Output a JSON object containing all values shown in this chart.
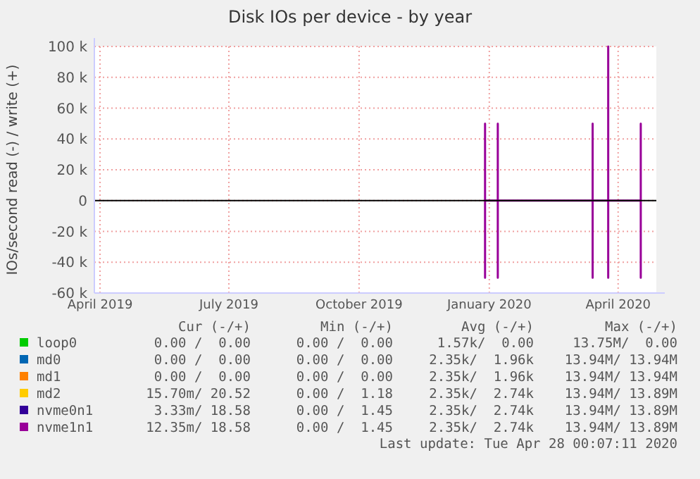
{
  "chart_data": {
    "type": "line",
    "title": "Disk IOs per device - by year",
    "ylabel": "IOs/second read (-) / write (+)",
    "xlim": [
      "2019-03-28",
      "2020-04-28"
    ],
    "xticks": [
      {
        "value": "2019-04-01",
        "label": "April 2019"
      },
      {
        "value": "2019-07-01",
        "label": "July 2019"
      },
      {
        "value": "2019-10-01",
        "label": "October 2019"
      },
      {
        "value": "2020-01-01",
        "label": "January 2020"
      },
      {
        "value": "2020-04-01",
        "label": "April 2020"
      }
    ],
    "ylim": [
      -60000,
      100000
    ],
    "yticks": [
      {
        "value": -60000,
        "label": "-60 k"
      },
      {
        "value": -40000,
        "label": "-40 k"
      },
      {
        "value": -20000,
        "label": "-20 k"
      },
      0,
      {
        "value": 20000,
        "label": "20 k"
      },
      {
        "value": 40000,
        "label": "40 k"
      },
      {
        "value": 60000,
        "label": "60 k"
      },
      {
        "value": 80000,
        "label": "80 k"
      },
      {
        "value": 100000,
        "label": "100 k"
      }
    ],
    "grid": true,
    "legend": "bottom",
    "ref_lines": [
      {
        "axis": "y",
        "value": 0,
        "color": "#000000"
      }
    ],
    "series": [
      {
        "name": "loop0",
        "color": "#00cc00"
      },
      {
        "name": "md0",
        "color": "#0066b3"
      },
      {
        "name": "md1",
        "color": "#ff8000"
      },
      {
        "name": "md2",
        "color": "#ffcc00"
      },
      {
        "name": "nvme0n1",
        "color": "#330099"
      },
      {
        "name": "nvme1n1",
        "color": "#990099",
        "x": [
          "2019-12-29",
          "2019-12-29",
          "2019-12-29",
          "2019-12-29",
          "2020-01-07",
          "2020-01-07",
          "2020-01-07",
          "2020-01-07",
          "2020-03-14",
          "2020-03-14",
          "2020-03-14",
          "2020-03-14",
          "2020-03-25",
          "2020-03-25",
          "2020-03-25",
          "2020-03-25",
          "2020-04-17",
          "2020-04-17",
          "2020-04-17",
          "2020-04-17"
        ],
        "values": [
          0,
          50000,
          -50000,
          0,
          0,
          50000,
          -50000,
          0,
          0,
          50000,
          -50000,
          0,
          0,
          100000,
          -50000,
          0,
          0,
          50000,
          -50000,
          0
        ]
      }
    ],
    "annotations": [
      "Cur (-/+)",
      "Min (-/+)",
      "Avg (-/+)",
      "Max (-/+)",
      "0.00 /  0.00",
      "0.00 /  0.00",
      "1.57k/  0.00",
      "13.75M/  0.00",
      "0.00 /  0.00",
      "0.00 /  0.00",
      "2.35k/  1.96k",
      "13.94M/ 13.94M",
      "0.00 /  0.00",
      "0.00 /  0.00",
      "2.35k/  1.96k",
      "13.94M/ 13.94M",
      "15.70m/ 20.52",
      "0.00 /  1.18",
      "2.35k/  2.74k",
      "13.94M/ 13.89M",
      "3.33m/ 18.58",
      "0.00 /  1.45",
      "2.35k/  2.74k",
      "13.94M/ 13.89M",
      "12.35m/ 18.58",
      "0.00 /  1.45",
      "2.35k/  2.74k",
      "13.94M/ 13.89M",
      "Last update: Tue Apr 28 00:07:11 2020"
    ]
  }
}
